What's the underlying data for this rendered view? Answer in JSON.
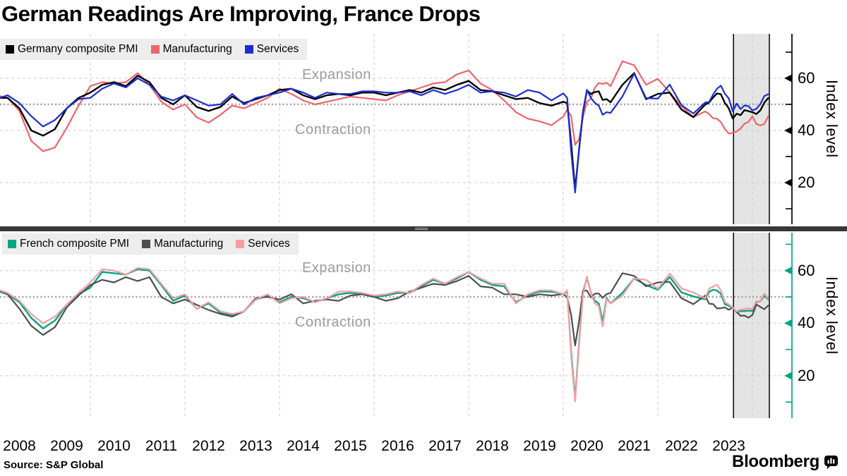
{
  "title": "German Readings Are Improving, France Drops",
  "source": "Source: S&P Global",
  "brand": {
    "name": "Bloomberg",
    "icon": "bloomberg-bug-icon"
  },
  "axis": {
    "label": "Index level",
    "region_above": "Expansion",
    "region_below": "Contraction"
  },
  "x_years": [
    "2008",
    "2009",
    "2010",
    "2011",
    "2012",
    "2013",
    "2014",
    "2015",
    "2016",
    "2017",
    "2018",
    "2019",
    "2020",
    "2021",
    "2022",
    "2023"
  ],
  "colors": {
    "germany_composite": "#000000",
    "germany_manufacturing": "#ef646c",
    "germany_services": "#1c2ed0",
    "france_composite": "#00a583",
    "france_manufacturing": "#4f4f4f",
    "france_services": "#f59fa1",
    "legend_background": "#ededed",
    "grid": "#cccccc",
    "threshold": "#a6a6a6",
    "highlight_band": "#e4e4e4",
    "region_text": "#9b9b9b",
    "divider": "#383838"
  },
  "panels": [
    {
      "name": "germany",
      "legend": [
        {
          "label": "Germany composite PMI",
          "color": "#000000"
        },
        {
          "label": "Manufacturing",
          "color": "#ef646c"
        },
        {
          "label": "Services",
          "color": "#1c2ed0"
        }
      ]
    },
    {
      "name": "france",
      "legend": [
        {
          "label": "French composite PMI",
          "color": "#00a583"
        },
        {
          "label": "Manufacturing",
          "color": "#4f4f4f"
        },
        {
          "label": "Services",
          "color": "#f59fa1"
        }
      ]
    }
  ],
  "chart_data": [
    {
      "type": "line",
      "region": "Germany",
      "yticks": [
        20,
        40,
        60
      ],
      "minor_ticks": [
        10,
        30,
        50,
        70
      ],
      "threshold": 50,
      "ylim": [
        4,
        77
      ],
      "axis_color": "#000000",
      "grid": "dashed",
      "legend_position": "top-left",
      "highlight_period": {
        "from": 2023.6,
        "to": 2024.45
      },
      "x": [
        2008,
        2008.25,
        2008.5,
        2008.75,
        2009,
        2009.25,
        2009.5,
        2009.75,
        2010,
        2010.25,
        2010.5,
        2010.75,
        2011,
        2011.25,
        2011.5,
        2011.75,
        2012,
        2012.25,
        2012.5,
        2012.75,
        2013,
        2013.25,
        2013.5,
        2013.75,
        2014,
        2014.25,
        2014.5,
        2014.75,
        2015,
        2015.25,
        2015.5,
        2015.75,
        2016,
        2016.25,
        2016.5,
        2016.75,
        2017,
        2017.25,
        2017.5,
        2017.75,
        2018,
        2018.25,
        2018.5,
        2018.75,
        2019,
        2019.25,
        2019.5,
        2019.75,
        2020,
        2020.083,
        2020.167,
        2020.25,
        2020.333,
        2020.417,
        2020.5,
        2020.583,
        2020.667,
        2020.75,
        2020.833,
        2020.917,
        2021,
        2021.25,
        2021.5,
        2021.75,
        2022,
        2022.25,
        2022.5,
        2022.75,
        2023,
        2023.083,
        2023.167,
        2023.25,
        2023.333,
        2023.417,
        2023.5,
        2023.583,
        2023.667,
        2023.75,
        2023.833,
        2023.917,
        2024,
        2024.083,
        2024.167,
        2024.25,
        2024.333
      ],
      "series": [
        {
          "name": "Germany composite PMI",
          "color": "#000000",
          "values": [
            52.5,
            52.5,
            48.5,
            40,
            38,
            40.5,
            48.5,
            52.5,
            54.5,
            57.5,
            58.5,
            57,
            61,
            58.5,
            52.5,
            50,
            53.5,
            49,
            47.5,
            49,
            53,
            50.5,
            52,
            53.5,
            55.5,
            56,
            53.5,
            52,
            53.5,
            54,
            53.5,
            54.5,
            54.5,
            53.5,
            54.5,
            55.5,
            54.5,
            56.5,
            55.5,
            57.5,
            59,
            55.5,
            55,
            53.5,
            52,
            52.5,
            50.5,
            49.5,
            51,
            50.5,
            35,
            17.4,
            32.3,
            47,
            55.3,
            54,
            54.7,
            55,
            51.7,
            52,
            50.8,
            57.5,
            62,
            52,
            54,
            54.5,
            48,
            45.1,
            49.9,
            50.7,
            52.6,
            54.2,
            53.9,
            50.6,
            48.5,
            44.6,
            46.4,
            45.9,
            47.8,
            47.4,
            47,
            46.3,
            47.7,
            50.6,
            52.4
          ]
        },
        {
          "name": "Manufacturing",
          "color": "#ef646c",
          "values": [
            53.5,
            52.5,
            47.5,
            36,
            32,
            33.5,
            41,
            49.5,
            57,
            58.5,
            58,
            58.5,
            62,
            57.5,
            51,
            48,
            50,
            45,
            43,
            46,
            49.5,
            48.5,
            50.5,
            52.5,
            56,
            54,
            51.5,
            50,
            51,
            52,
            53,
            52.5,
            52,
            51.5,
            53.5,
            55,
            56.5,
            58,
            58.5,
            61.5,
            63,
            58,
            55.5,
            51.5,
            47,
            44.5,
            43.5,
            42,
            45.3,
            48,
            45.4,
            34.5,
            36.6,
            45.2,
            51,
            52.2,
            56.4,
            58.2,
            57.8,
            58.3,
            57,
            66.5,
            65,
            57.5,
            59.8,
            54.6,
            49.3,
            45.1,
            47.3,
            46.3,
            44.7,
            44.5,
            43.2,
            40.6,
            38.8,
            39.1,
            39.6,
            40.8,
            42.6,
            43.3,
            45.5,
            42.5,
            41.9,
            42.5,
            45.4
          ]
        },
        {
          "name": "Services",
          "color": "#1c2ed0",
          "values": [
            52,
            53.5,
            50.5,
            45.5,
            41.5,
            44,
            48.5,
            52,
            52.5,
            56,
            58,
            56.5,
            60,
            57.5,
            53,
            51.5,
            53.5,
            51.5,
            49.5,
            50,
            54,
            50,
            52.5,
            53.5,
            54.5,
            56,
            54.5,
            52.5,
            54.5,
            54,
            54,
            55,
            55,
            54.5,
            54.5,
            55,
            53.5,
            55.5,
            54,
            55.5,
            57.5,
            54.5,
            55,
            54.5,
            53,
            55.5,
            54.5,
            51.5,
            54.2,
            52.5,
            31.7,
            16.2,
            32.6,
            47.3,
            55.6,
            52.5,
            50.6,
            49.5,
            46,
            47,
            46.7,
            53,
            61.8,
            52.4,
            52.2,
            57.6,
            49.7,
            46.5,
            50.7,
            50.9,
            53.7,
            56,
            57.2,
            54.1,
            52.3,
            47.3,
            50.3,
            48.2,
            49.6,
            49.3,
            47.7,
            48.3,
            50.1,
            53.2,
            53.9
          ]
        }
      ]
    },
    {
      "type": "line",
      "region": "France",
      "yticks": [
        20,
        40,
        60
      ],
      "minor_ticks": [
        10,
        30,
        50,
        70
      ],
      "threshold": 50,
      "ylim": [
        4,
        74
      ],
      "axis_color": "#00a583",
      "grid": "dashed",
      "legend_position": "top-left",
      "highlight_period": {
        "from": 2023.6,
        "to": 2024.45
      },
      "x": [
        2008,
        2008.25,
        2008.5,
        2008.75,
        2009,
        2009.25,
        2009.5,
        2009.75,
        2010,
        2010.25,
        2010.5,
        2010.75,
        2011,
        2011.25,
        2011.5,
        2011.75,
        2012,
        2012.25,
        2012.5,
        2012.75,
        2013,
        2013.25,
        2013.5,
        2013.75,
        2014,
        2014.25,
        2014.5,
        2014.75,
        2015,
        2015.25,
        2015.5,
        2015.75,
        2016,
        2016.25,
        2016.5,
        2016.75,
        2017,
        2017.25,
        2017.5,
        2017.75,
        2018,
        2018.25,
        2018.5,
        2018.75,
        2019,
        2019.25,
        2019.5,
        2019.75,
        2020,
        2020.083,
        2020.167,
        2020.25,
        2020.333,
        2020.417,
        2020.5,
        2020.583,
        2020.667,
        2020.75,
        2020.833,
        2020.917,
        2021,
        2021.25,
        2021.5,
        2021.75,
        2022,
        2022.25,
        2022.5,
        2022.75,
        2023,
        2023.083,
        2023.167,
        2023.25,
        2023.333,
        2023.417,
        2023.5,
        2023.583,
        2023.667,
        2023.75,
        2023.833,
        2023.917,
        2024,
        2024.083,
        2024.167,
        2024.25,
        2024.333
      ],
      "series": [
        {
          "name": "French composite PMI",
          "color": "#00a583",
          "values": [
            52.5,
            51,
            48,
            42,
            38,
            41,
            47,
            51,
            53.5,
            59.5,
            59,
            58.5,
            60.5,
            60,
            54.5,
            48.5,
            50.5,
            45.5,
            47.5,
            44,
            43,
            44.5,
            49,
            50.5,
            48,
            50,
            49.5,
            48,
            49.5,
            51,
            51.5,
            51,
            50,
            50.5,
            51.5,
            51.5,
            54,
            56.5,
            55,
            57,
            59.5,
            56.5,
            54.5,
            54,
            48,
            50.5,
            52,
            52,
            51.1,
            52,
            28.9,
            11.1,
            32.1,
            51.7,
            57.3,
            51.6,
            48.5,
            47.5,
            40.6,
            49.5,
            47.5,
            51.5,
            57,
            54.5,
            52.7,
            57.6,
            51.7,
            50.2,
            49.1,
            51.9,
            52.7,
            52.4,
            51.2,
            47.2,
            46.6,
            46,
            44.1,
            44.6,
            44.6,
            44.8,
            44.6,
            48.1,
            48.3,
            50.5,
            49.1
          ]
        },
        {
          "name": "Manufacturing",
          "color": "#4f4f4f",
          "values": [
            53,
            51,
            45.5,
            39,
            35.5,
            38.5,
            46,
            50.5,
            54.5,
            56.5,
            55.5,
            57.5,
            56,
            57.5,
            50,
            47.5,
            49,
            47,
            45,
            43.5,
            42.5,
            44.5,
            49.5,
            50,
            49,
            51,
            47.5,
            48.5,
            49,
            48.5,
            50.5,
            51,
            50,
            48.5,
            49.5,
            52,
            53.5,
            55,
            54.5,
            56,
            58,
            54,
            53.5,
            51,
            51,
            50,
            51,
            50.5,
            51.1,
            49.8,
            43.2,
            31.5,
            40.6,
            52.3,
            52.4,
            49.8,
            51.2,
            51.3,
            49.6,
            51.1,
            51.5,
            59,
            58,
            54,
            55.5,
            55.7,
            49.5,
            47.2,
            50.5,
            47.4,
            47.3,
            45.6,
            45.7,
            46,
            45.1,
            46,
            44.2,
            42.8,
            42.9,
            42.1,
            43.1,
            47.1,
            46.2,
            45.3,
            46.7
          ]
        },
        {
          "name": "Services",
          "color": "#f59fa1",
          "values": [
            53,
            51.5,
            48.5,
            43.5,
            40,
            42.5,
            47,
            51.5,
            55.5,
            60.5,
            60,
            58.5,
            61,
            60.5,
            55,
            49.5,
            51,
            45.5,
            48,
            44.5,
            43.5,
            44.5,
            49,
            51,
            47.5,
            49.5,
            50,
            48,
            49.5,
            52,
            52,
            51.5,
            50.5,
            51,
            52,
            51.5,
            54.5,
            57,
            55,
            57.5,
            59.5,
            57,
            55,
            55,
            47.5,
            51,
            52.5,
            52.5,
            51,
            52.5,
            27.4,
            10.2,
            31.1,
            50.7,
            57.8,
            51.5,
            47.5,
            46.5,
            38.8,
            49.1,
            47.5,
            50.5,
            57,
            56.5,
            53.1,
            58.9,
            53.2,
            51.7,
            49.4,
            53.1,
            53.9,
            54.6,
            52.5,
            48,
            47.1,
            46,
            44.4,
            45.2,
            45.4,
            45.7,
            45.4,
            48.4,
            48.3,
            51.3,
            49.4
          ]
        }
      ]
    }
  ]
}
